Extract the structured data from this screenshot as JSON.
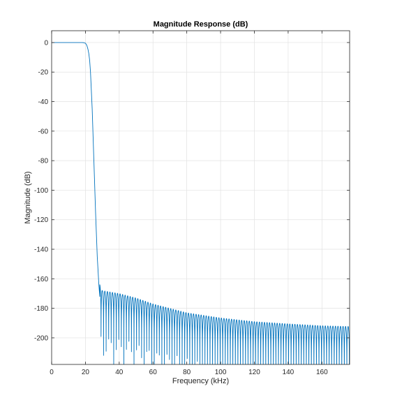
{
  "chart_data": {
    "type": "line",
    "title": "Magnitude Response (dB)",
    "xlabel": "Frequency (kHz)",
    "ylabel": "Magnitude (dB)",
    "xlim": [
      0,
      176.4
    ],
    "ylim": [
      -218,
      8
    ],
    "x_ticks": [
      0,
      20,
      40,
      60,
      80,
      100,
      120,
      140,
      160
    ],
    "y_ticks": [
      0,
      -20,
      -40,
      -60,
      -80,
      -100,
      -120,
      -140,
      -160,
      -180,
      -200
    ],
    "x_tick_labels": [
      "0",
      "20",
      "40",
      "60",
      "80",
      "100",
      "120",
      "140",
      "160"
    ],
    "y_tick_labels": [
      "0",
      "-20",
      "-40",
      "-60",
      "-80",
      "-100",
      "-120",
      "-140",
      "-160",
      "-180",
      "-200"
    ],
    "grid": true,
    "line_color": "#0072BD",
    "series": [
      {
        "name": "",
        "passband_edge_khz": 20,
        "stopband_edge_khz": 28.5,
        "stopband_ripple_spacing_khz": 1.5,
        "x": [
          0,
          10,
          18,
          19,
          20,
          20.5,
          21,
          21.5,
          22,
          22.5,
          23,
          24,
          25,
          26,
          27,
          28,
          28.5
        ],
        "values": [
          0,
          0,
          0,
          -0.1,
          -0.5,
          -1.2,
          -2.5,
          -4.5,
          -7.5,
          -12,
          -20,
          -45,
          -80,
          -115,
          -145,
          -165,
          -172
        ],
        "stopband_envelope_x": [
          28.5,
          30,
          35,
          40,
          50,
          60,
          80,
          100,
          120,
          140,
          160,
          176.4
        ],
        "stopband_envelope_db": [
          -164,
          -168,
          -169,
          -170,
          -173,
          -177,
          -183,
          -186.5,
          -189,
          -190.5,
          -191.8,
          -192.3
        ]
      }
    ]
  }
}
